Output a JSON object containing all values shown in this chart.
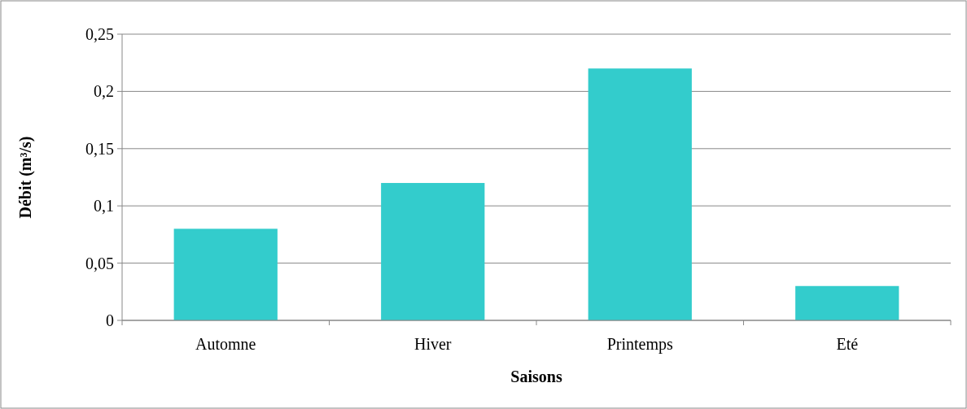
{
  "chart_data": {
    "type": "bar",
    "xlabel": "Saisons",
    "ylabel": "Débit (m³/s)",
    "categories": [
      "Automne",
      "Hiver",
      "Printemps",
      "Eté"
    ],
    "values": [
      0.08,
      0.12,
      0.22,
      0.03
    ],
    "color": "#33cccc",
    "ylim": [
      0,
      0.25
    ],
    "yticks": [
      0,
      {
        "value": 0.05,
        "label": "0,05"
      },
      {
        "value": 0.1,
        "label": "0,1"
      },
      {
        "value": 0.15,
        "label": "0,15"
      },
      {
        "value": 0.2,
        "label": "0,2"
      },
      {
        "value": 0.25,
        "label": "0,25"
      }
    ],
    "grid": "y"
  }
}
